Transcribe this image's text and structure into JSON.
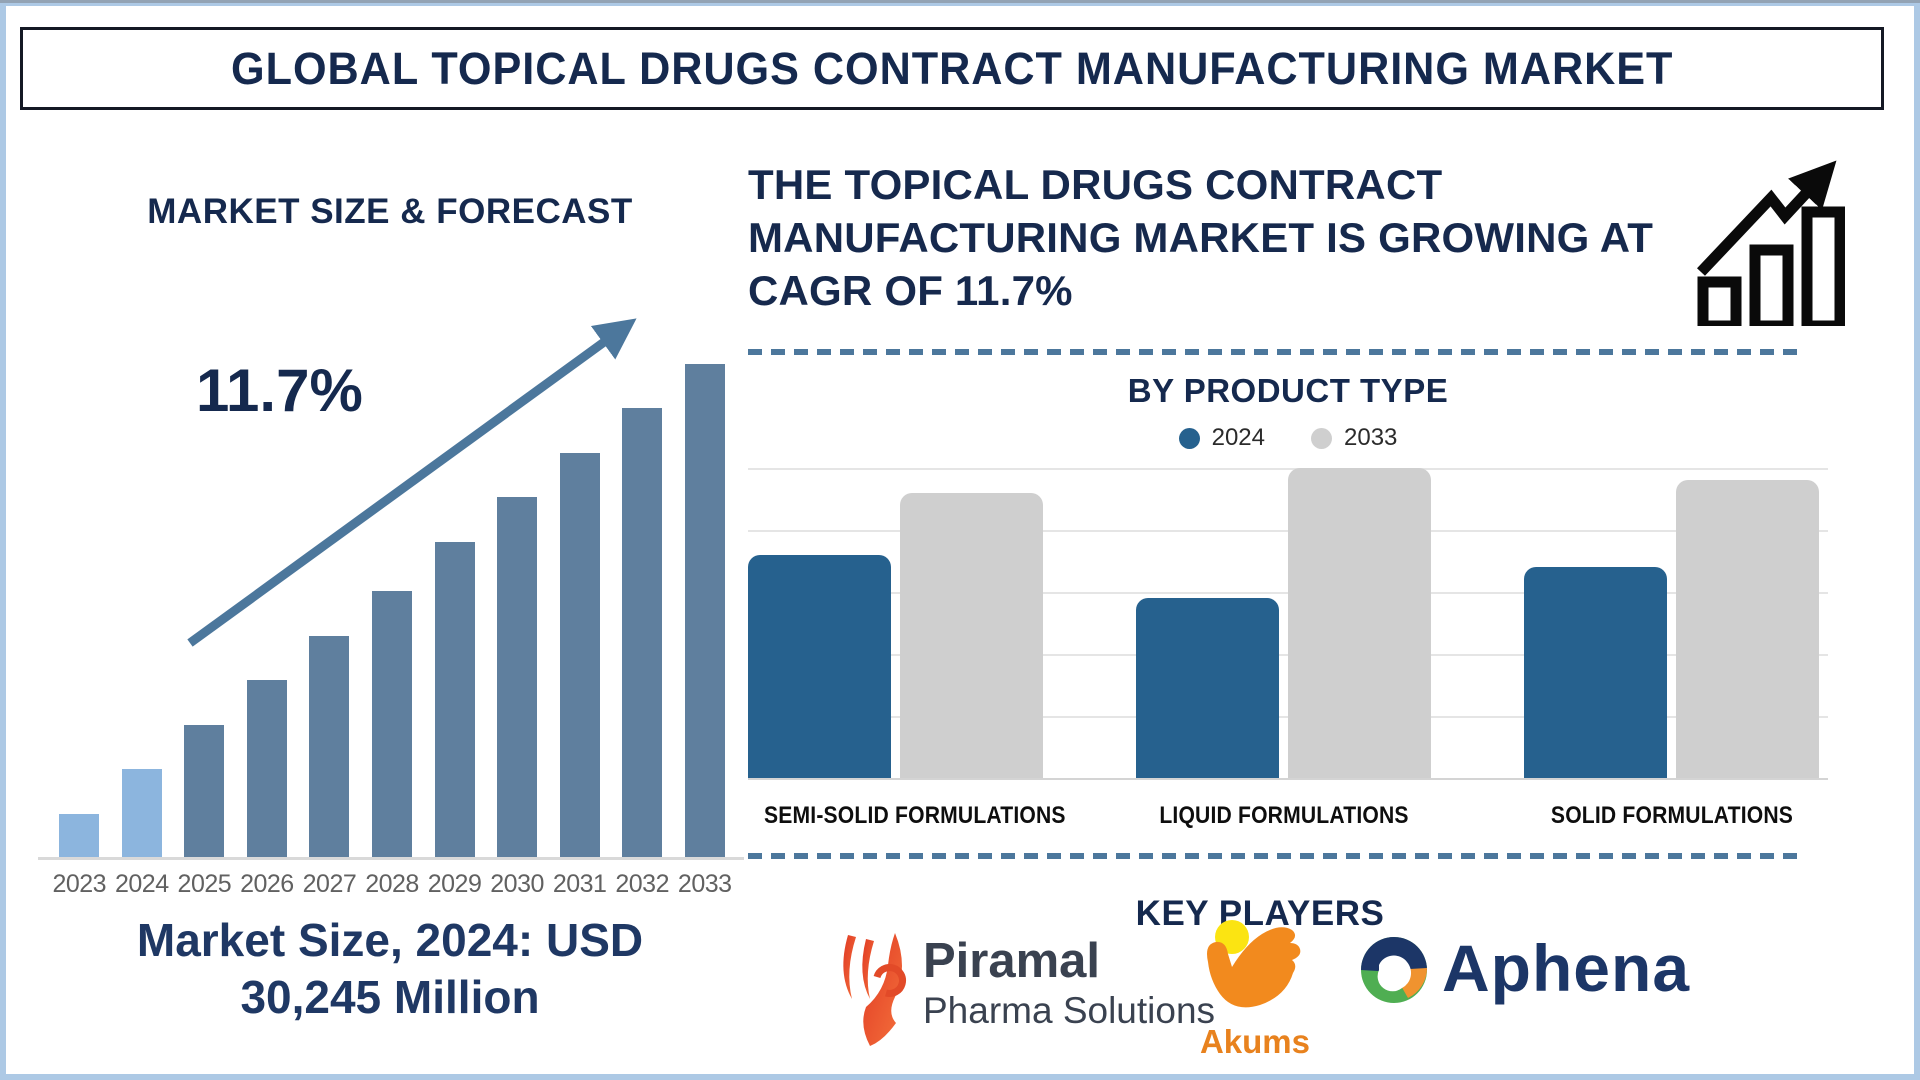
{
  "page": {
    "title": "GLOBAL TOPICAL DRUGS CONTRACT MANUFACTURING MARKET",
    "frame_color": "#ADC9E5",
    "accent_navy": "#15294E",
    "accent_steel": "#4C779C"
  },
  "left_panel": {
    "heading": "MARKET SIZE & FORECAST",
    "cagr_label": "11.7%",
    "caption_lines": [
      "Market Size, 2024: USD",
      "30,245 Million"
    ]
  },
  "right_panel": {
    "headline_lines": [
      "THE TOPICAL DRUGS CONTRACT",
      "MANUFACTURING MARKET IS GROWING AT",
      "CAGR OF 11.7%"
    ],
    "growth_icon": "rising-bar-chart-arrow-icon",
    "product_section_title": "BY PRODUCT TYPE",
    "legend": [
      {
        "label": "2024",
        "color": "#26618E"
      },
      {
        "label": "2033",
        "color": "#CFCFCF"
      }
    ],
    "key_players_title": "KEY PLAYERS",
    "key_players": [
      {
        "name": "Piramal Pharma Solutions",
        "text_primary": "Piramal",
        "text_secondary": "Pharma Solutions",
        "icon": "piramal-flame-icon"
      },
      {
        "name": "Akums",
        "text_primary": "Akums",
        "icon": "akums-hand-sun-icon"
      },
      {
        "name": "Aphena",
        "text_primary": "Aphena",
        "icon": "aphena-swirl-icon"
      }
    ]
  },
  "chart_data": [
    {
      "type": "bar",
      "title": "MARKET SIZE & FORECAST",
      "categories": [
        "2023",
        "2024",
        "2025",
        "2026",
        "2027",
        "2028",
        "2029",
        "2030",
        "2031",
        "2032",
        "2033"
      ],
      "values": [
        0.09,
        0.18,
        0.27,
        0.36,
        0.45,
        0.54,
        0.64,
        0.73,
        0.82,
        0.91,
        1.0
      ],
      "values_note": "relative bar heights; no value axis shown in figure",
      "known_values": {
        "2024": "USD 30,245 Million"
      },
      "annotation": "11.7% CAGR growth arrow",
      "bar_colors": [
        "#8CB5DE",
        "#8CB5DE",
        "#5F7F9E",
        "#5F7F9E",
        "#5F7F9E",
        "#5F7F9E",
        "#5F7F9E",
        "#5F7F9E",
        "#5F7F9E",
        "#5F7F9E",
        "#5F7F9E"
      ],
      "xlabel": "",
      "ylabel": "",
      "grid": false
    },
    {
      "type": "bar",
      "title": "BY PRODUCT TYPE",
      "categories": [
        "SEMI-SOLID FORMULATIONS",
        "LIQUID FORMULATIONS",
        "SOLID FORMULATIONS"
      ],
      "series": [
        {
          "name": "2024",
          "color": "#26618E",
          "values": [
            0.72,
            0.58,
            0.68
          ]
        },
        {
          "name": "2033",
          "color": "#CFCFCF",
          "values": [
            0.92,
            1.0,
            0.96
          ]
        }
      ],
      "values_note": "relative bar heights; no value axis shown in figure",
      "grid": true,
      "legend_position": "top"
    }
  ]
}
